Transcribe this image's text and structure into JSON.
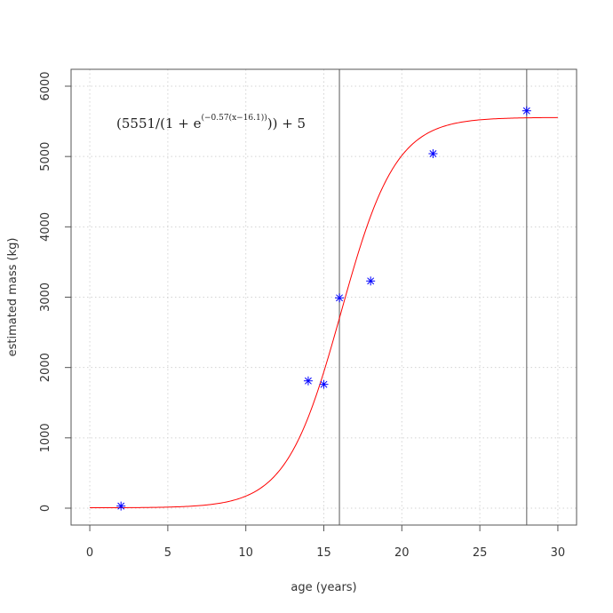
{
  "chart_data": {
    "type": "scatter",
    "title": "",
    "xlabel": "age (years)",
    "ylabel": "estimated mass (kg)",
    "xlim": [
      -1.2,
      31.2
    ],
    "ylim": [
      -240,
      6240
    ],
    "x_ticks": [
      0,
      5,
      10,
      15,
      20,
      25,
      30
    ],
    "y_ticks": [
      0,
      1000,
      2000,
      3000,
      4000,
      5000,
      6000
    ],
    "grid": true,
    "points": {
      "marker": "asterisk",
      "color": "#0000ff",
      "x": [
        2,
        14,
        15,
        16,
        18,
        22,
        28
      ],
      "y": [
        30,
        1810,
        1760,
        2990,
        3230,
        5040,
        5650
      ]
    },
    "fit_curve": {
      "color": "#ff0000",
      "formula": {
        "K": 5551,
        "r": -0.57,
        "x0": 16.1,
        "c": 5
      },
      "x_range": [
        0,
        30
      ]
    },
    "vertical_lines": {
      "color": "#808080",
      "x": [
        16,
        28
      ]
    },
    "annotation": {
      "open": "(5551/(1 + e",
      "sup": "(−0.57(x−16.1))",
      "close": ")) + 5"
    }
  }
}
